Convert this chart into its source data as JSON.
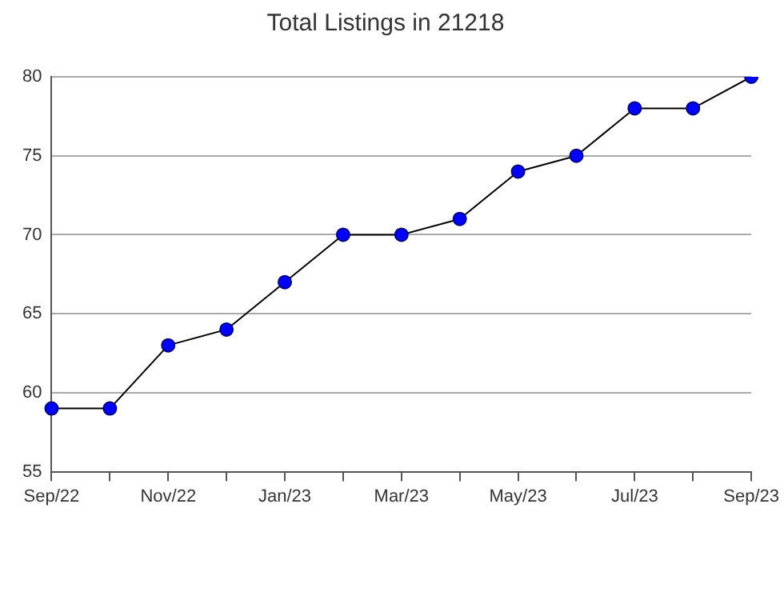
{
  "chart_data": {
    "type": "line",
    "title": "Total Listings in 21218",
    "categories": [
      "Sep/22",
      null,
      "Nov/22",
      null,
      "Jan/23",
      null,
      "Mar/23",
      null,
      "May/23",
      null,
      "Jul/23",
      null,
      "Sep/23"
    ],
    "series": [
      {
        "color": "#0000ff",
        "values": [
          59,
          59,
          63,
          64,
          67,
          70,
          70,
          71,
          74,
          75,
          78,
          78,
          80
        ]
      }
    ],
    "ylim": [
      55,
      80
    ],
    "yticks": [
      55,
      60,
      65,
      70,
      75,
      80
    ],
    "grid": "y",
    "legend": false,
    "marker": "circle",
    "line_style": "solid"
  }
}
